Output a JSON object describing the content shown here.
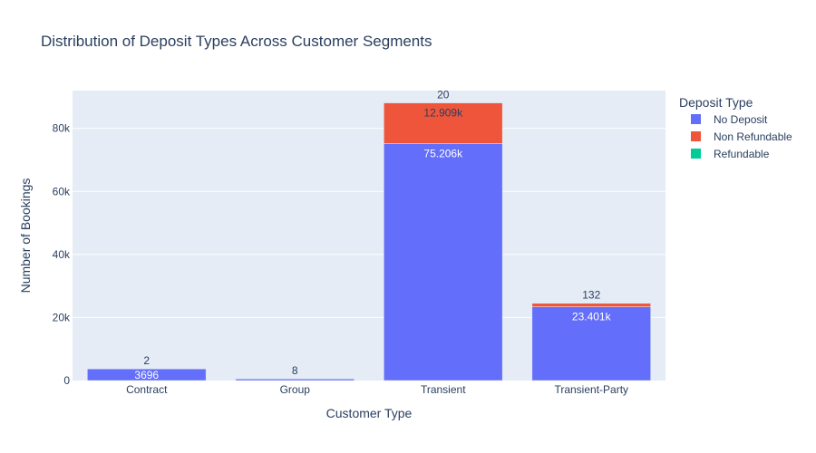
{
  "chart_data": {
    "type": "bar",
    "barmode": "stack",
    "title": "Distribution of Deposit Types Across Customer Segments",
    "xlabel": "Customer Type",
    "ylabel": "Number of Bookings",
    "categories": [
      "Contract",
      "Group",
      "Transient",
      "Transient-Party"
    ],
    "ylim": [
      0,
      92000
    ],
    "yticks": [
      0,
      20000,
      40000,
      60000,
      80000
    ],
    "ytick_labels": [
      "0",
      "20k",
      "40k",
      "60k",
      "80k"
    ],
    "grid": true,
    "legend_title": "Deposit Type",
    "legend_position": "top-right",
    "series": [
      {
        "name": "No Deposit",
        "color": "#636efa",
        "values": [
          3696,
          500,
          75206,
          23401
        ],
        "labels": [
          "3696",
          "",
          "75.206k",
          "23.401k"
        ],
        "label_position": "inside"
      },
      {
        "name": "Non Refundable",
        "color": "#ef553b",
        "values": [
          41,
          0,
          12909,
          1102
        ],
        "labels": [
          "",
          "",
          "12.909k",
          ""
        ],
        "label_position": "inside"
      },
      {
        "name": "Refundable",
        "color": "#00cc96",
        "values": [
          2,
          8,
          20,
          132
        ],
        "labels": [
          "2",
          "8",
          "20",
          "132"
        ],
        "label_position": "outside"
      }
    ]
  }
}
